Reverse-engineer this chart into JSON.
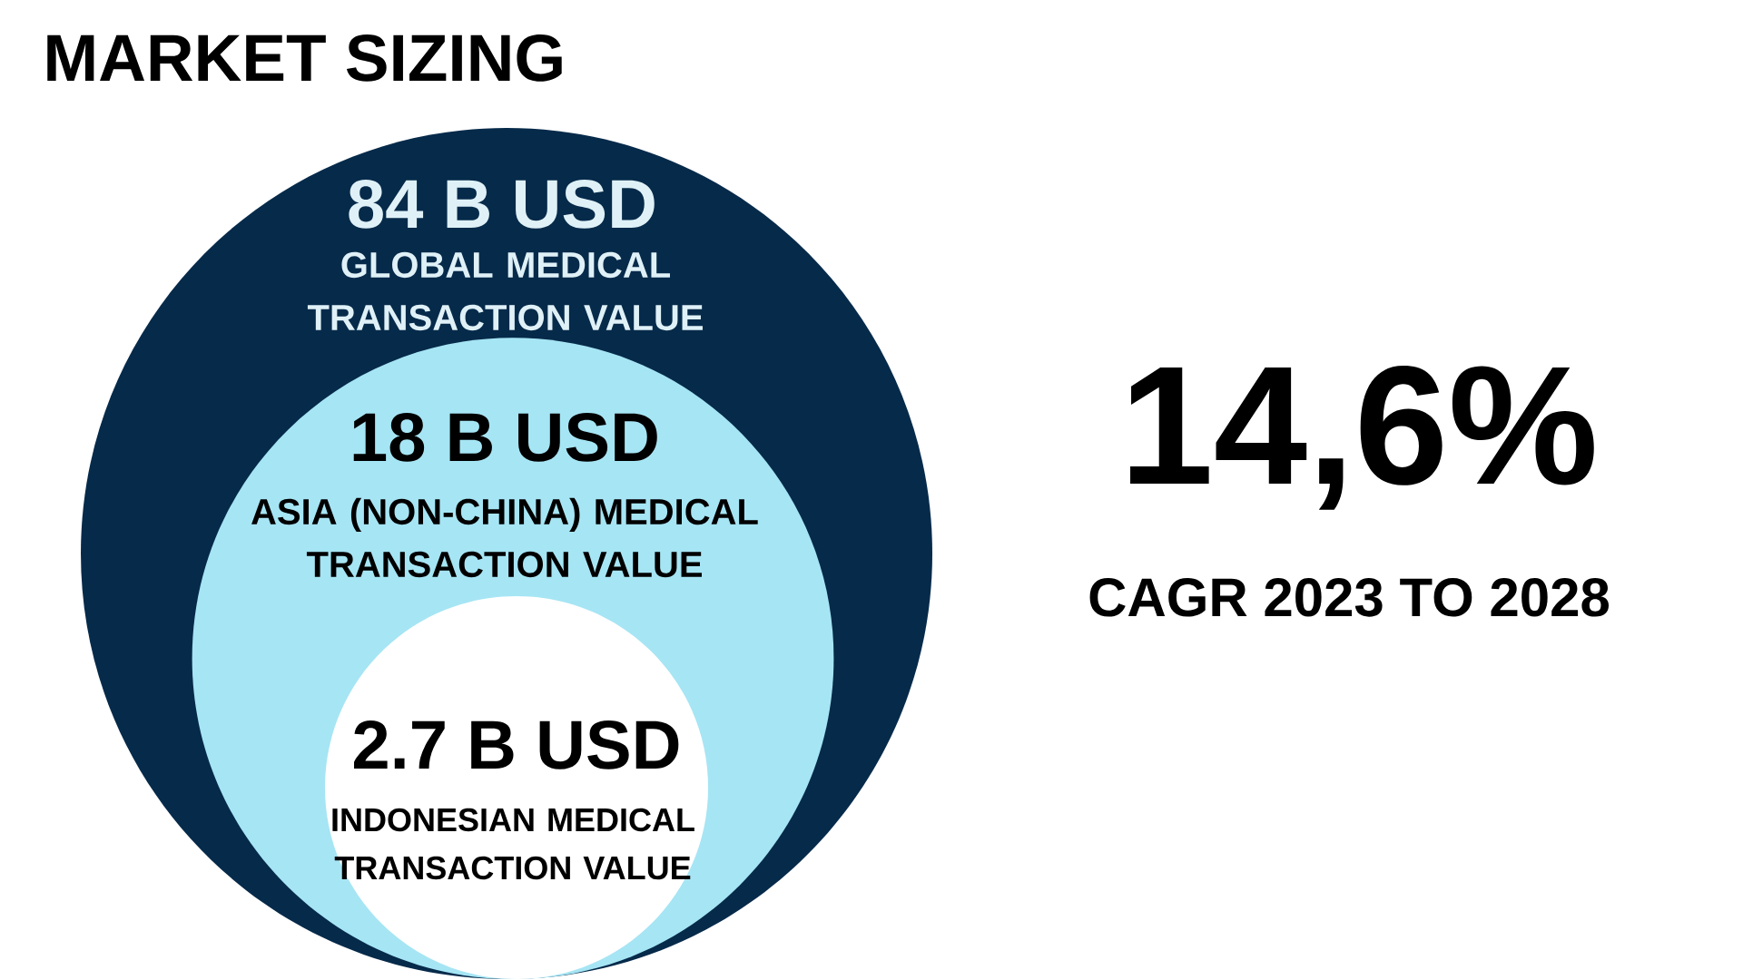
{
  "chart_data": {
    "type": "other",
    "title": "MARKET SIZING",
    "categories": [
      "GLOBAL MEDICAL TRANSACTION VALUE",
      "ASIA (NON-CHINA) MEDICAL TRANSACTION VALUE",
      "INDONESIAN MEDICAL TRANSACTION VALUE"
    ],
    "values": [
      84,
      18,
      2.7
    ],
    "value_labels": [
      "84 B USD",
      "18 B USD",
      "2.7 B USD"
    ],
    "colors": [
      "#062a4a",
      "#a6e5f4",
      "#ffffff"
    ],
    "annotations": [
      "14,6%",
      "CAGR 2023 TO 2028"
    ]
  }
}
